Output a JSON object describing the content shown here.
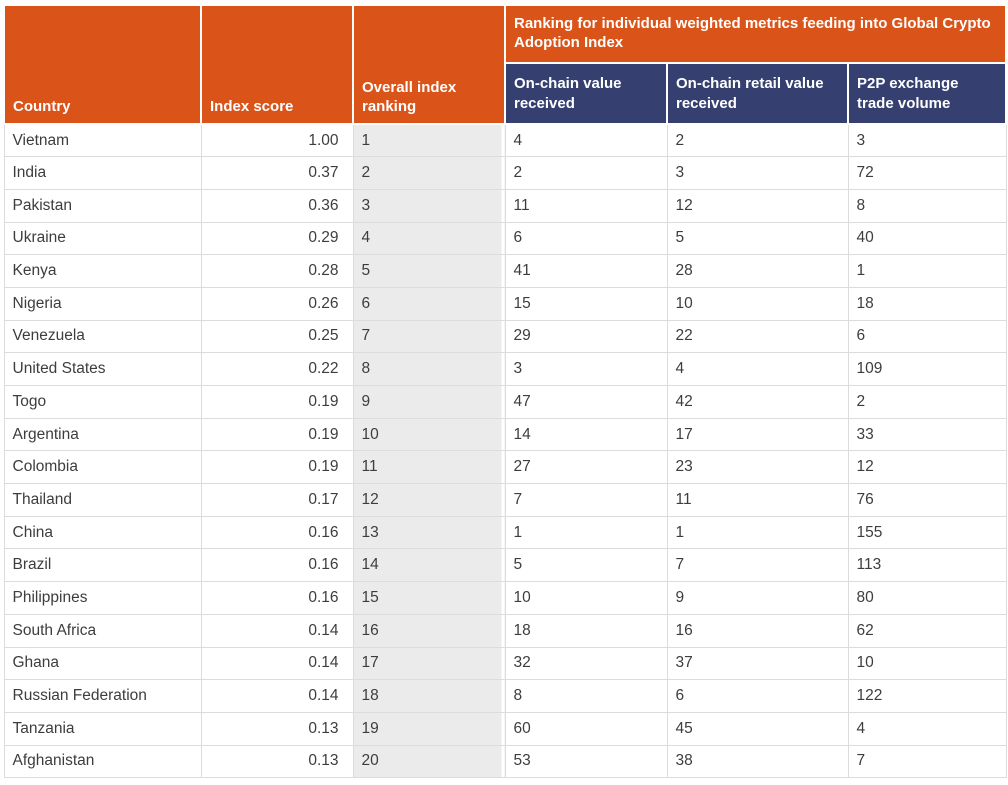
{
  "colors": {
    "orange": "#DA5419",
    "navy": "#354070",
    "rank_bg": "#EBEBEB",
    "border": "#DCDCDC",
    "text": "#3D3D3D",
    "header_text": "#FFFFFF",
    "page_bg": "#FFFFFF"
  },
  "chart_data": {
    "type": "table",
    "group_header": "Ranking for individual weighted metrics feeding into Global Crypto Adoption Index",
    "columns": [
      "Country",
      "Index score",
      "Overall index ranking",
      "On-chain value received",
      "On-chain retail value received",
      "P2P exchange trade volume"
    ],
    "rows": [
      {
        "country": "Vietnam",
        "index_score": "1.00",
        "overall_ranking": "1",
        "on_chain_value": "4",
        "on_chain_retail": "2",
        "p2p_volume": "3"
      },
      {
        "country": "India",
        "index_score": "0.37",
        "overall_ranking": "2",
        "on_chain_value": "2",
        "on_chain_retail": "3",
        "p2p_volume": "72"
      },
      {
        "country": "Pakistan",
        "index_score": "0.36",
        "overall_ranking": "3",
        "on_chain_value": "11",
        "on_chain_retail": "12",
        "p2p_volume": "8"
      },
      {
        "country": "Ukraine",
        "index_score": "0.29",
        "overall_ranking": "4",
        "on_chain_value": "6",
        "on_chain_retail": "5",
        "p2p_volume": "40"
      },
      {
        "country": "Kenya",
        "index_score": "0.28",
        "overall_ranking": "5",
        "on_chain_value": "41",
        "on_chain_retail": "28",
        "p2p_volume": "1"
      },
      {
        "country": "Nigeria",
        "index_score": "0.26",
        "overall_ranking": "6",
        "on_chain_value": "15",
        "on_chain_retail": "10",
        "p2p_volume": "18"
      },
      {
        "country": "Venezuela",
        "index_score": "0.25",
        "overall_ranking": "7",
        "on_chain_value": "29",
        "on_chain_retail": "22",
        "p2p_volume": "6"
      },
      {
        "country": "United States",
        "index_score": "0.22",
        "overall_ranking": "8",
        "on_chain_value": "3",
        "on_chain_retail": "4",
        "p2p_volume": "109"
      },
      {
        "country": "Togo",
        "index_score": "0.19",
        "overall_ranking": "9",
        "on_chain_value": "47",
        "on_chain_retail": "42",
        "p2p_volume": "2"
      },
      {
        "country": "Argentina",
        "index_score": "0.19",
        "overall_ranking": "10",
        "on_chain_value": "14",
        "on_chain_retail": "17",
        "p2p_volume": "33"
      },
      {
        "country": "Colombia",
        "index_score": "0.19",
        "overall_ranking": "11",
        "on_chain_value": "27",
        "on_chain_retail": "23",
        "p2p_volume": "12"
      },
      {
        "country": "Thailand",
        "index_score": "0.17",
        "overall_ranking": "12",
        "on_chain_value": "7",
        "on_chain_retail": "11",
        "p2p_volume": "76"
      },
      {
        "country": "China",
        "index_score": "0.16",
        "overall_ranking": "13",
        "on_chain_value": "1",
        "on_chain_retail": "1",
        "p2p_volume": "155"
      },
      {
        "country": "Brazil",
        "index_score": "0.16",
        "overall_ranking": "14",
        "on_chain_value": "5",
        "on_chain_retail": "7",
        "p2p_volume": "113"
      },
      {
        "country": "Philippines",
        "index_score": "0.16",
        "overall_ranking": "15",
        "on_chain_value": "10",
        "on_chain_retail": "9",
        "p2p_volume": "80"
      },
      {
        "country": "South Africa",
        "index_score": "0.14",
        "overall_ranking": "16",
        "on_chain_value": "18",
        "on_chain_retail": "16",
        "p2p_volume": "62"
      },
      {
        "country": "Ghana",
        "index_score": "0.14",
        "overall_ranking": "17",
        "on_chain_value": "32",
        "on_chain_retail": "37",
        "p2p_volume": "10"
      },
      {
        "country": "Russian Federation",
        "index_score": "0.14",
        "overall_ranking": "18",
        "on_chain_value": "8",
        "on_chain_retail": "6",
        "p2p_volume": "122"
      },
      {
        "country": "Tanzania",
        "index_score": "0.13",
        "overall_ranking": "19",
        "on_chain_value": "60",
        "on_chain_retail": "45",
        "p2p_volume": "4"
      },
      {
        "country": "Afghanistan",
        "index_score": "0.13",
        "overall_ranking": "20",
        "on_chain_value": "53",
        "on_chain_retail": "38",
        "p2p_volume": "7"
      }
    ]
  }
}
